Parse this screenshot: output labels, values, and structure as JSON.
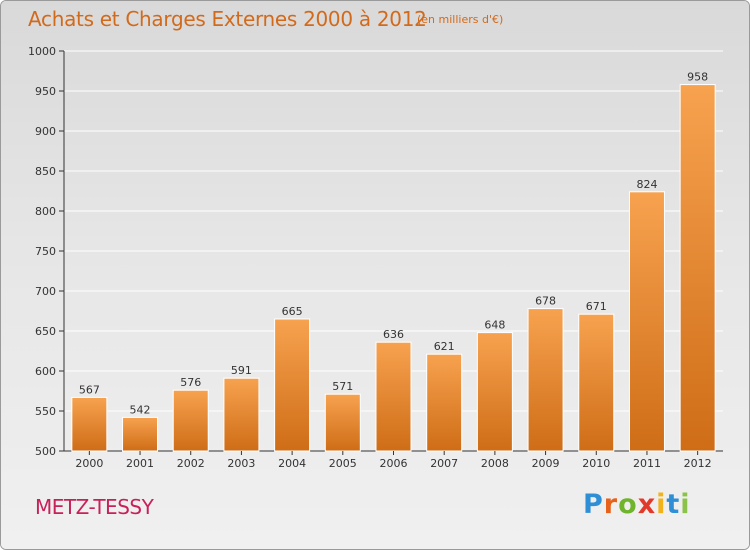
{
  "title": "Achats et Charges Externes 2000 à 2012",
  "subtitle": "(en milliers d'€)",
  "city": "METZ-TESSY",
  "logo": {
    "letters": [
      "P",
      "r",
      "o",
      "x",
      "i",
      "t",
      "i"
    ],
    "colors": [
      "#2f8fd6",
      "#e8611a",
      "#6fb42c",
      "#e23a2a",
      "#f2b21a",
      "#2f8fd6",
      "#8bc34a"
    ]
  },
  "colors": {
    "bar_top": "#f7a24f",
    "bar_bottom": "#cf6d17",
    "title": "#d26a1c",
    "city": "#c8215a",
    "grid": "#ffffff"
  },
  "chart_data": {
    "type": "bar",
    "categories": [
      "2000",
      "2001",
      "2002",
      "2003",
      "2004",
      "2005",
      "2006",
      "2007",
      "2008",
      "2009",
      "2010",
      "2011",
      "2012"
    ],
    "values": [
      567,
      542,
      576,
      591,
      665,
      571,
      636,
      621,
      648,
      678,
      671,
      824,
      958
    ],
    "title": "Achats et Charges Externes 2000 à 2012",
    "subtitle": "(en milliers d'€)",
    "ylim": [
      500,
      1000
    ],
    "yticks": [
      500,
      550,
      600,
      650,
      700,
      750,
      800,
      850,
      900,
      950,
      1000
    ],
    "grid": true,
    "data_labels": true
  }
}
